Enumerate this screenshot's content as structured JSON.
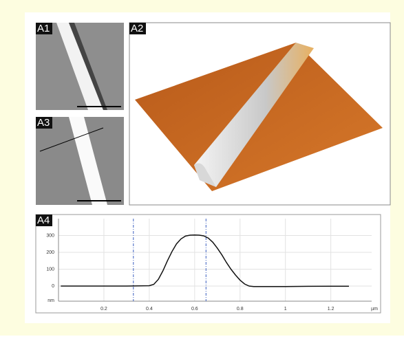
{
  "panel_labels": [
    "A1",
    "A2",
    "A3",
    "A4"
  ],
  "chart_data": {
    "type": "line",
    "x": [
      0.01,
      0.1,
      0.2,
      0.3,
      0.4,
      0.42,
      0.44,
      0.46,
      0.48,
      0.5,
      0.52,
      0.54,
      0.56,
      0.58,
      0.6,
      0.62,
      0.64,
      0.66,
      0.68,
      0.7,
      0.72,
      0.74,
      0.76,
      0.78,
      0.8,
      0.82,
      0.84,
      0.86,
      0.9,
      1.0,
      1.1,
      1.2,
      1.28
    ],
    "values": [
      0,
      0,
      0,
      0,
      2,
      10,
      40,
      90,
      150,
      205,
      250,
      280,
      297,
      302,
      303,
      302,
      298,
      285,
      260,
      225,
      185,
      140,
      100,
      65,
      35,
      12,
      0,
      -3,
      -3,
      -3,
      -2,
      -1,
      -1
    ],
    "color": "#111111",
    "xlim": [
      0,
      1.38
    ],
    "xticks": [
      0.2,
      0.4,
      0.6,
      0.8,
      1,
      1.2
    ],
    "ylim": [
      -90,
      400
    ],
    "yticks": [
      0,
      100,
      200,
      300
    ],
    "x_unit": "µm",
    "y_unit": "nm",
    "cursors": [
      0.33,
      0.65
    ],
    "cursor_color": "#3b5fc0",
    "grid": true
  }
}
